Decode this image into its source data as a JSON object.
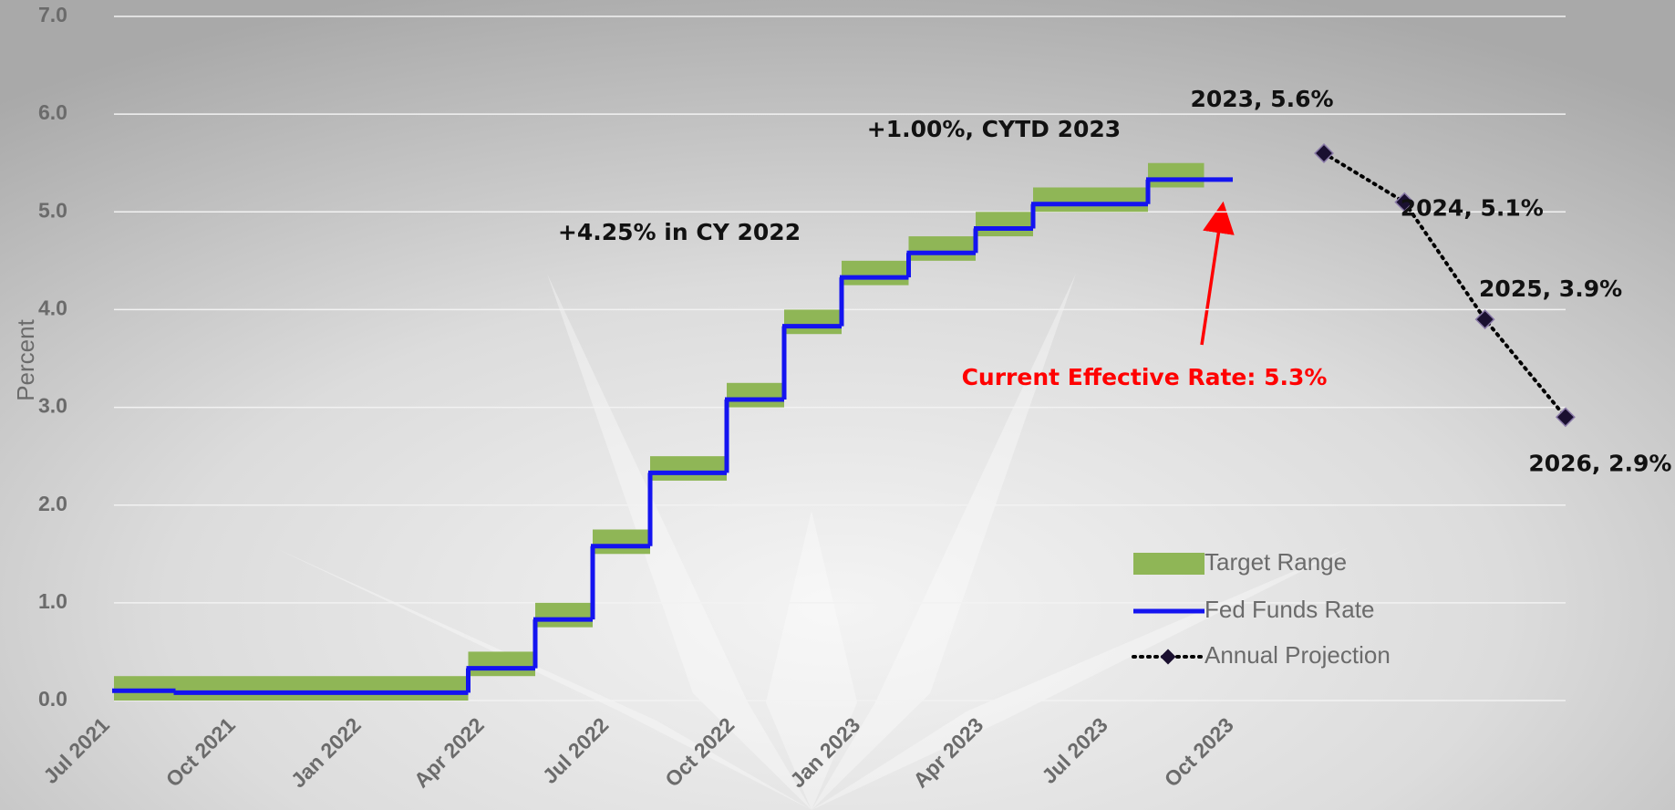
{
  "chart_data": {
    "type": "line",
    "ylabel": "Percent",
    "ylim": [
      0,
      7
    ],
    "yticks": [
      {
        "value": 0,
        "label": "0.0"
      },
      {
        "value": 1,
        "label": "1.0"
      },
      {
        "value": 2,
        "label": "2.0"
      },
      {
        "value": 3,
        "label": "3.0"
      },
      {
        "value": 4,
        "label": "4.0"
      },
      {
        "value": 5,
        "label": "5.0"
      },
      {
        "value": 6,
        "label": "6.0"
      },
      {
        "value": 7,
        "label": "7.0"
      }
    ],
    "xlim": [
      "2021-07-01",
      "2023-10-01"
    ],
    "xticks": [
      {
        "value": "2021-07-01",
        "label": "Jul 2021"
      },
      {
        "value": "2021-10-01",
        "label": "Oct 2021"
      },
      {
        "value": "2022-01-01",
        "label": "Jan 2022"
      },
      {
        "value": "2022-04-01",
        "label": "Apr 2022"
      },
      {
        "value": "2022-07-01",
        "label": "Jul 2022"
      },
      {
        "value": "2022-10-01",
        "label": "Oct 2022"
      },
      {
        "value": "2023-01-01",
        "label": "Jan 2023"
      },
      {
        "value": "2023-04-01",
        "label": "Apr 2023"
      },
      {
        "value": "2023-07-01",
        "label": "Jul 2023"
      },
      {
        "value": "2023-10-01",
        "label": "Oct 2023"
      }
    ],
    "grid": true,
    "series": [
      {
        "name": "Target Range",
        "color": "#8fb656",
        "x": [
          "2021-07-01",
          "2022-03-17",
          "2022-05-05",
          "2022-06-16",
          "2022-07-28",
          "2022-09-22",
          "2022-11-03",
          "2022-12-15",
          "2023-02-02",
          "2023-03-23",
          "2023-05-04",
          "2023-07-27"
        ],
        "end": "2023-09-06",
        "lower": [
          0,
          0.25,
          0.75,
          1.5,
          2.25,
          3.0,
          3.75,
          4.25,
          4.5,
          4.75,
          5.0,
          5.25
        ],
        "upper": [
          0.25,
          0.5,
          1.0,
          1.75,
          2.5,
          3.25,
          4.0,
          4.5,
          4.75,
          5.0,
          5.25,
          5.5
        ]
      },
      {
        "name": "Fed Funds Rate",
        "color": "#1414f0",
        "x": [
          "2021-07-01",
          "2021-08-15",
          "2022-03-17",
          "2022-05-05",
          "2022-06-16",
          "2022-07-28",
          "2022-09-22",
          "2022-11-03",
          "2022-12-15",
          "2023-02-02",
          "2023-03-23",
          "2023-05-04",
          "2023-07-27"
        ],
        "end": "2023-09-27",
        "values": [
          0.1,
          0.08,
          0.33,
          0.83,
          1.58,
          2.33,
          3.08,
          3.83,
          4.33,
          4.58,
          4.83,
          5.08,
          5.33
        ]
      },
      {
        "name": "Annual Projection",
        "color": "#1a1030",
        "x": [
          2023,
          2024,
          2025,
          2026
        ],
        "values": [
          5.6,
          5.1,
          3.9,
          2.9
        ],
        "value_labels": [
          "2023, 5.6%",
          "2024, 5.1%",
          "2025, 3.9%",
          "2026, 2.9%"
        ]
      }
    ],
    "annotations": [
      "+4.25% in CY 2022",
      "+1.00%, CYTD 2023",
      "Current Effective Rate: 5.3%"
    ]
  }
}
